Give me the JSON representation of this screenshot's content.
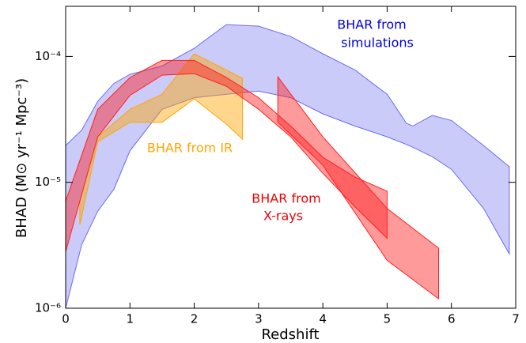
{
  "chart_data": {
    "type": "band",
    "log_y": true,
    "xlabel": "Redshift",
    "ylabel": "BHAD (M⊙ yr⁻¹ Mpc⁻³)",
    "xlim": [
      0,
      7
    ],
    "ylim": [
      1e-06,
      0.00025
    ],
    "xticks": [
      0,
      1,
      2,
      3,
      4,
      5,
      6,
      7
    ],
    "yticks": [
      {
        "value": 1e-06,
        "label": "10⁻⁶"
      },
      {
        "value": 1e-05,
        "label": "10⁻⁵"
      },
      {
        "value": 0.0001,
        "label": "10⁻⁴"
      }
    ],
    "series": [
      {
        "label": [
          "BHAR from",
          "simulations"
        ],
        "color": "#6b6bf0",
        "text_color": "#0000dd",
        "x": [
          0,
          0.25,
          0.5,
          0.75,
          1,
          1.5,
          2,
          2.5,
          3,
          3.5,
          4,
          4.5,
          5,
          5.3,
          5.4,
          5.7,
          6,
          6.5,
          6.9
        ],
        "upper": [
          1.96e-05,
          2.6e-05,
          4.4e-05,
          6.1e-05,
          7.2e-05,
          8.4e-05,
          0.000116,
          0.000179,
          0.000174,
          0.000144,
          0.000105,
          7.8e-05,
          5e-05,
          2.95e-05,
          2.8e-05,
          3.4e-05,
          3.1e-05,
          1.96e-05,
          1.33e-05
        ],
        "lower": [
          1e-06,
          3.2e-06,
          5.9e-06,
          8.8e-06,
          1.78e-05,
          3.8e-05,
          4.7e-05,
          5e-05,
          5.3e-05,
          4.7e-05,
          3.5e-05,
          2.8e-05,
          2.3e-05,
          2e-05,
          1.9e-05,
          1.6e-05,
          1.27e-05,
          6.2e-06,
          2.7e-06
        ]
      },
      {
        "label": [
          "BHAR from IR"
        ],
        "color": "#ffa500",
        "text_color": "#ffa500",
        "x": [
          0.22,
          0.5,
          1,
          1.5,
          2,
          2.5,
          2.75
        ],
        "upper": [
          7.1e-06,
          2.3e-05,
          3.8e-05,
          5e-05,
          0.000105,
          7.8e-05,
          6.7e-05
        ],
        "lower": [
          4.6e-06,
          2.1e-05,
          3e-05,
          3e-05,
          4.6e-05,
          2.9e-05,
          2.2e-05
        ]
      },
      {
        "label": [
          "BHAR from",
          "X-rays"
        ],
        "color": "#ff2020",
        "text_color": "#ee0000",
        "x": [
          0,
          0.5,
          1,
          1.5,
          2,
          2.5,
          3,
          3.5,
          4,
          4.5,
          5
        ],
        "upper": [
          7.1e-06,
          3.8e-05,
          6.8e-05,
          9.3e-05,
          9.3e-05,
          6.8e-05,
          4.7e-05,
          2.8e-05,
          1.58e-05,
          1.1e-05,
          8.5e-06
        ],
        "lower": [
          2.8e-06,
          2.3e-05,
          4.9e-05,
          7.1e-05,
          7.3e-05,
          5.8e-05,
          3.8e-05,
          2.3e-05,
          1.18e-05,
          6.4e-06,
          3.6e-06
        ]
      },
      {
        "color": "#ff2020",
        "x": [
          3.3,
          4,
          5,
          5.8
        ],
        "upper": [
          6.9e-05,
          2.3e-05,
          6.2e-06,
          3e-06
        ],
        "lower": [
          3e-05,
          1.37e-05,
          2.4e-06,
          1.19e-06
        ]
      }
    ]
  }
}
